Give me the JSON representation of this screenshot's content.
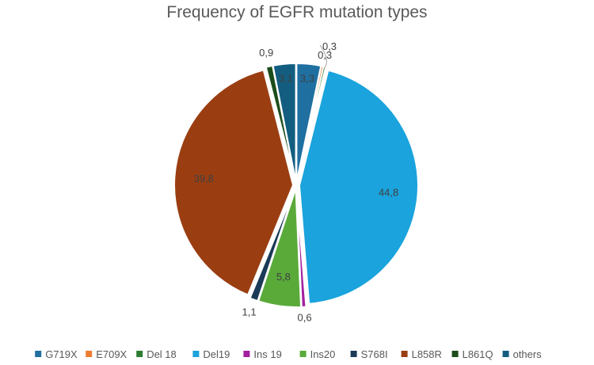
{
  "chart_data": {
    "type": "pie",
    "title": "Frequency of EGFR mutation types",
    "legend_position": "bottom",
    "series": [
      {
        "name": "G719X",
        "value": 3.3,
        "color": "#1f6fa0",
        "label": "3,3"
      },
      {
        "name": "E709X",
        "value": 0.3,
        "color": "#ed7d31",
        "label": "0,3"
      },
      {
        "name": "Del 18",
        "value": 0.3,
        "color": "#2e7d32",
        "label": "0,3"
      },
      {
        "name": "Del19",
        "value": 44.8,
        "color": "#1aa3dc",
        "label": "44,8"
      },
      {
        "name": "Ins 19",
        "value": 0.6,
        "color": "#a020a0",
        "label": "0,6"
      },
      {
        "name": "Ins20",
        "value": 5.8,
        "color": "#5aaa3a",
        "label": "5,8"
      },
      {
        "name": "S768I",
        "value": 1.1,
        "color": "#1b3a57",
        "label": "1,1"
      },
      {
        "name": "L858R",
        "value": 39.8,
        "color": "#9a3e12",
        "label": "39,8"
      },
      {
        "name": "L861Q",
        "value": 0.9,
        "color": "#1b4d1b",
        "label": "0,9"
      },
      {
        "name": "others",
        "value": 3.1,
        "color": "#135e80",
        "label": "3,1"
      }
    ]
  }
}
